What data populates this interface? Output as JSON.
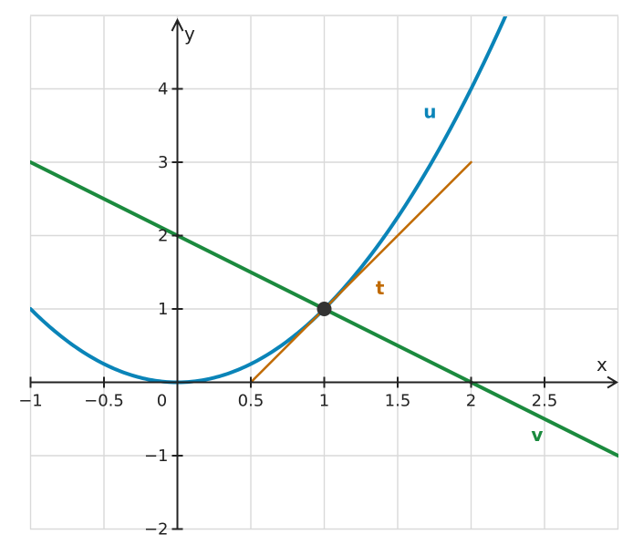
{
  "chart_data": {
    "type": "line",
    "title": "",
    "xlabel": "x",
    "ylabel": "y",
    "xlim": [
      -1,
      3
    ],
    "ylim": [
      -2,
      5
    ],
    "grid": true,
    "x_ticks": [
      {
        "value": -1,
        "label": "−1"
      },
      {
        "value": -0.5,
        "label": "−0.5"
      },
      {
        "value": 0,
        "label": "0"
      },
      {
        "value": 0.5,
        "label": "0.5"
      },
      {
        "value": 1,
        "label": "1"
      },
      {
        "value": 1.5,
        "label": "1.5"
      },
      {
        "value": 2,
        "label": "2"
      },
      {
        "value": 2.5,
        "label": "2.5"
      }
    ],
    "y_ticks": [
      {
        "value": -2,
        "label": "−2"
      },
      {
        "value": -1,
        "label": "−1"
      },
      {
        "value": 1,
        "label": "1"
      },
      {
        "value": 2,
        "label": "2"
      },
      {
        "value": 3,
        "label": "3"
      },
      {
        "value": 4,
        "label": "4"
      }
    ],
    "series": [
      {
        "name": "u",
        "color": "#0a84b8",
        "points": [
          [
            -1,
            1
          ],
          [
            -0.75,
            0.5625
          ],
          [
            -0.5,
            0.25
          ],
          [
            -0.25,
            0.0625
          ],
          [
            0,
            0
          ],
          [
            0.25,
            0.0625
          ],
          [
            0.5,
            0.25
          ],
          [
            0.75,
            0.5625
          ],
          [
            1,
            1
          ],
          [
            1.25,
            1.5625
          ],
          [
            1.5,
            2.25
          ],
          [
            1.75,
            3.0625
          ],
          [
            2,
            4
          ],
          [
            2.25,
            5.0625
          ]
        ]
      },
      {
        "name": "t",
        "color": "#c06a00",
        "points": [
          [
            0.5,
            0
          ],
          [
            2,
            3
          ]
        ]
      },
      {
        "name": "v",
        "color": "#1b8a3e",
        "points": [
          [
            -1,
            3
          ],
          [
            3,
            -1
          ]
        ]
      }
    ],
    "marked_point": {
      "x": 1,
      "y": 1,
      "color": "#333333"
    },
    "annotations": [
      {
        "text": "u",
        "x": 1.72,
        "y": 3.6,
        "color": "#0a84b8"
      },
      {
        "text": "t",
        "x": 1.38,
        "y": 1.2,
        "color": "#c06a00"
      },
      {
        "text": "v",
        "x": 2.45,
        "y": -0.8,
        "color": "#1b8a3e"
      }
    ]
  }
}
